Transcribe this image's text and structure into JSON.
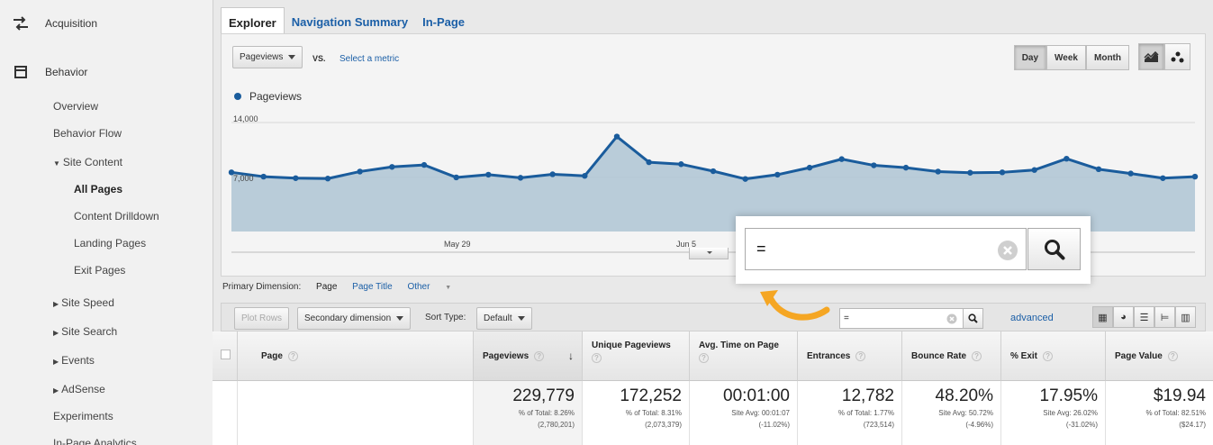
{
  "sidebar": {
    "acquisition": "Acquisition",
    "behavior": "Behavior",
    "items": {
      "overview": "Overview",
      "behavior_flow": "Behavior Flow",
      "site_content": "Site Content",
      "all_pages": "All Pages",
      "content_drilldown": "Content Drilldown",
      "landing_pages": "Landing Pages",
      "exit_pages": "Exit Pages",
      "site_speed": "Site Speed",
      "site_search": "Site Search",
      "events": "Events",
      "adsense": "AdSense",
      "experiments": "Experiments",
      "in_page_analytics": "In-Page Analytics"
    }
  },
  "tabs": [
    "Explorer",
    "Navigation Summary",
    "In-Page"
  ],
  "chart_controls": {
    "metric": "Pageviews",
    "vs": "VS.",
    "select_metric": "Select a metric",
    "periods": [
      "Day",
      "Week",
      "Month"
    ],
    "active_period": "Day",
    "chart_type_icons": [
      "line-chart-icon",
      "motion-chart-icon"
    ]
  },
  "chart_data": {
    "type": "area",
    "legend": "Pageviews",
    "y_ticks": [
      "14,000",
      "7,000"
    ],
    "x_ticks": [
      "May 29",
      "Jun 5"
    ],
    "ylim": [
      0,
      14000
    ],
    "grid": true,
    "series": [
      {
        "name": "Pageviews",
        "values": [
          7600,
          7050,
          6850,
          6800,
          7700,
          8300,
          8550,
          6950,
          7300,
          6900,
          7350,
          7150,
          12200,
          8900,
          8650,
          7750,
          6750,
          7300,
          8200,
          9300,
          8500,
          8200,
          7700,
          7550,
          7600,
          7900,
          9350,
          8000,
          7450,
          6850,
          7050
        ]
      }
    ],
    "color": "#1a5c9c",
    "fill": "#b3c8d6"
  },
  "primary_dimension": {
    "label": "Primary Dimension:",
    "current": "Page",
    "page_title": "Page Title",
    "other": "Other"
  },
  "toolbar": {
    "plot_rows": "Plot Rows",
    "secondary_dimension": "Secondary dimension",
    "sort_type_label": "Sort Type:",
    "sort_type_value": "Default",
    "filter_value": "=",
    "advanced": "advanced",
    "view_icons": [
      "data-table-icon",
      "pie-chart-icon",
      "performance-icon",
      "comparison-icon",
      "pivot-icon"
    ]
  },
  "table": {
    "headers": [
      "Page",
      "Pageviews",
      "Unique Pageviews",
      "Avg. Time on Page",
      "Entrances",
      "Bounce Rate",
      "% Exit",
      "Page Value"
    ],
    "totals": [
      {
        "value": "229,779",
        "sub1": "% of Total: 8.26%",
        "sub2": "(2,780,201)"
      },
      {
        "value": "172,252",
        "sub1": "% of Total: 8.31%",
        "sub2": "(2,073,379)"
      },
      {
        "value": "00:01:00",
        "sub1": "Site Avg: 00:01:07",
        "sub2": "(-11.02%)"
      },
      {
        "value": "12,782",
        "sub1": "% of Total: 1.77%",
        "sub2": "(723,514)"
      },
      {
        "value": "48.20%",
        "sub1": "Site Avg: 50.72%",
        "sub2": "(-4.96%)"
      },
      {
        "value": "17.95%",
        "sub1": "Site Avg: 26.02%",
        "sub2": "(-31.02%)"
      },
      {
        "value": "$19.94",
        "sub1": "% of Total: 82.51%",
        "sub2": "($24.17)"
      }
    ]
  },
  "zoom": {
    "filter_value": "="
  },
  "colors": {
    "link": "#1b5fa7",
    "arrow": "#f5a623",
    "series": "#1a5c9c"
  }
}
